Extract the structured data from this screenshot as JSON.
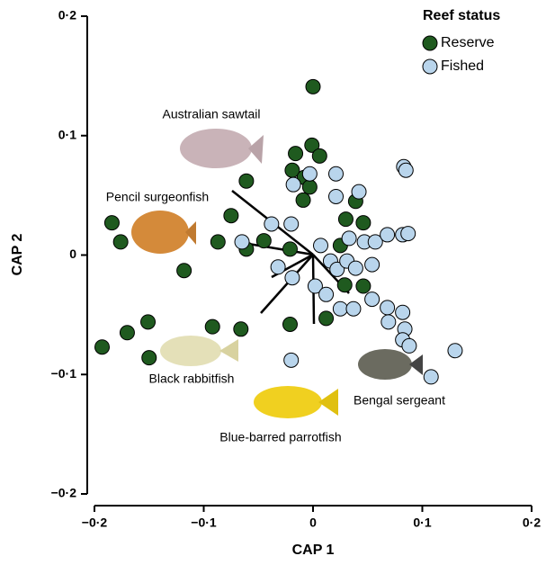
{
  "chart_data": {
    "type": "scatter",
    "x_label": "CAP 1",
    "y_label": "CAP 2",
    "legend_title": "Reef status",
    "legend": "top-right",
    "xlim": [
      -0.2,
      0.2
    ],
    "ylim": [
      -0.2,
      0.2
    ],
    "xticks": [
      {
        "value": -0.2,
        "label": "−0·2"
      },
      {
        "value": -0.1,
        "label": "−0·1"
      },
      0,
      {
        "value": 0.1,
        "label": "0·1"
      },
      {
        "value": 0.2,
        "label": "0·2"
      }
    ],
    "yticks": [
      {
        "value": -0.2,
        "label": "−0·2"
      },
      {
        "value": -0.1,
        "label": "−0·1"
      },
      0,
      {
        "value": 0.1,
        "label": "0·1"
      },
      {
        "value": 0.2,
        "label": "0·2"
      }
    ],
    "annotations": [
      "Australian sawtail",
      "Pencil surgeonfish",
      "Black rabbitfish",
      "Blue-barred parrotfish",
      "Bengal sergeant"
    ],
    "series": [
      {
        "name": "Reserve",
        "color": "#1f5a1f",
        "x": [
          0,
          -0.016,
          -0.001,
          0.006,
          -0.019,
          -0.008,
          -0.003,
          -0.009,
          -0.061,
          -0.075,
          -0.184,
          -0.176,
          -0.087,
          -0.061,
          -0.045,
          -0.021,
          -0.118,
          -0.193,
          -0.17,
          -0.151,
          -0.15,
          -0.092,
          -0.066,
          -0.021,
          0.012,
          0.029,
          0.025,
          0.03,
          0.039,
          0.046,
          0.046
        ],
        "values": [
          0.141,
          0.085,
          0.092,
          0.083,
          0.071,
          0.065,
          0.057,
          0.046,
          0.062,
          0.033,
          0.027,
          0.011,
          0.011,
          0.005,
          0.012,
          0.005,
          -0.013,
          -0.077,
          -0.065,
          -0.056,
          -0.086,
          -0.06,
          -0.062,
          -0.058,
          -0.053,
          -0.025,
          0.008,
          0.03,
          0.045,
          0.027,
          -0.026
        ]
      },
      {
        "name": "Fished",
        "color": "#b9d5ec",
        "x": [
          0.021,
          -0.003,
          -0.018,
          0.021,
          0.042,
          -0.02,
          -0.038,
          -0.065,
          0.007,
          0.033,
          0.047,
          0.057,
          0.068,
          0.082,
          0.087,
          0.083,
          0.085,
          -0.032,
          -0.019,
          0.002,
          0.016,
          0.022,
          0.031,
          0.039,
          0.054,
          0.012,
          0.025,
          0.037,
          0.054,
          0.068,
          0.069,
          0.082,
          0.084,
          0.082,
          0.088,
          -0.02,
          0.13,
          0.108
        ],
        "values": [
          0.068,
          0.068,
          0.059,
          0.049,
          0.053,
          0.026,
          0.026,
          0.011,
          0.008,
          0.014,
          0.011,
          0.011,
          0.017,
          0.017,
          0.018,
          0.074,
          0.071,
          -0.01,
          -0.019,
          -0.026,
          -0.005,
          -0.012,
          -0.005,
          -0.011,
          -0.008,
          -0.033,
          -0.045,
          -0.045,
          -0.037,
          -0.044,
          -0.056,
          -0.048,
          -0.062,
          -0.071,
          -0.076,
          -0.088,
          -0.08,
          -0.102
        ]
      }
    ]
  }
}
